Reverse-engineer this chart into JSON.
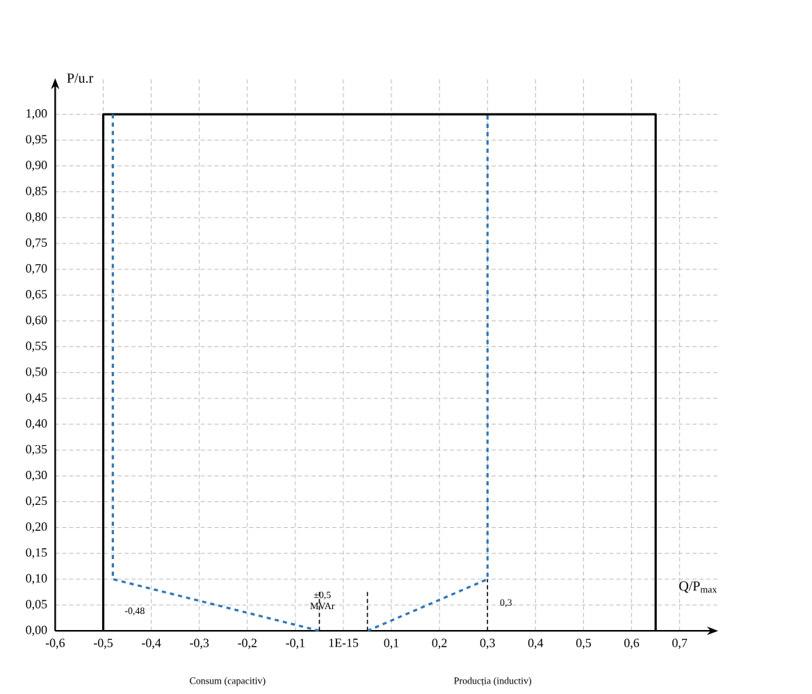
{
  "chart_data": {
    "type": "line",
    "xlabel": "Q/P$_{max}$",
    "ylabel": "P/u.r",
    "series": [
      {
        "x": [
          -0.5,
          -0.5,
          0.65,
          0.65
        ],
        "values": [
          0,
          1,
          1,
          0
        ],
        "color": "#000000",
        "line_style": "solid"
      },
      {
        "x": [
          -0.48,
          -0.48,
          -0.05
        ],
        "values": [
          1,
          0.1,
          0
        ],
        "color": "#2e75b6",
        "line_style": "dashed"
      },
      {
        "x": [
          0.05,
          0.3,
          0.3
        ],
        "values": [
          0,
          0.1,
          1
        ],
        "color": "#2e75b6",
        "line_style": "dashed"
      },
      {
        "x": [
          -0.05,
          -0.05
        ],
        "values": [
          0,
          0.08
        ],
        "color": "#000000",
        "line_style": "dotted"
      },
      {
        "x": [
          0.05,
          0.05
        ],
        "values": [
          0,
          0.08
        ],
        "color": "#000000",
        "line_style": "dotted"
      },
      {
        "x": [
          0.3,
          0.3
        ],
        "values": [
          0,
          0.1
        ],
        "color": "#000000",
        "line_style": "dotted"
      }
    ],
    "xlim": [
      -0.6,
      0.78
    ],
    "ylim": [
      0,
      1.07
    ],
    "xticks": [
      {
        "value": -0.6,
        "label": "-0,6"
      },
      {
        "value": -0.5,
        "label": "-0,5"
      },
      {
        "value": -0.4,
        "label": "-0,4"
      },
      {
        "value": -0.3,
        "label": "-0,3"
      },
      {
        "value": -0.2,
        "label": "-0,2"
      },
      {
        "value": -0.1,
        "label": "-0,1"
      },
      {
        "value": 0,
        "label": "1E-15"
      },
      {
        "value": 0.1,
        "label": "0,1"
      },
      {
        "value": 0.2,
        "label": "0,2"
      },
      {
        "value": 0.3,
        "label": "0,3"
      },
      {
        "value": 0.4,
        "label": "0,4"
      },
      {
        "value": 0.5,
        "label": "0,5"
      },
      {
        "value": 0.6,
        "label": "0,6"
      },
      {
        "value": 0.7,
        "label": "0,7"
      }
    ],
    "yticks": [
      {
        "value": 0,
        "label": "0,00"
      },
      {
        "value": 0.05,
        "label": "0,05"
      },
      {
        "value": 0.1,
        "label": "0,10"
      },
      {
        "value": 0.15,
        "label": "0,15"
      },
      {
        "value": 0.2,
        "label": "0,20"
      },
      {
        "value": 0.25,
        "label": "0,25"
      },
      {
        "value": 0.3,
        "label": "0,30"
      },
      {
        "value": 0.35,
        "label": "0,35"
      },
      {
        "value": 0.4,
        "label": "0,40"
      },
      {
        "value": 0.45,
        "label": "0,45"
      },
      {
        "value": 0.5,
        "label": "0,50"
      },
      {
        "value": 0.55,
        "label": "0,55"
      },
      {
        "value": 0.6,
        "label": "0,60"
      },
      {
        "value": 0.65,
        "label": "0,65"
      },
      {
        "value": 0.7,
        "label": "0,70"
      },
      {
        "value": 0.75,
        "label": "0,75"
      },
      {
        "value": 0.8,
        "label": "0,80"
      },
      {
        "value": 0.85,
        "label": "0,85"
      },
      {
        "value": 0.9,
        "label": "0,90"
      },
      {
        "value": 0.95,
        "label": "0,95"
      },
      {
        "value": 1,
        "label": "1,00"
      }
    ],
    "grid": true,
    "marker": "none",
    "annotations": [
      "-0,48",
      "±0,5 MVAr",
      "0,3",
      "Consum (capacitiv)",
      "Producția (inductiv)"
    ]
  }
}
